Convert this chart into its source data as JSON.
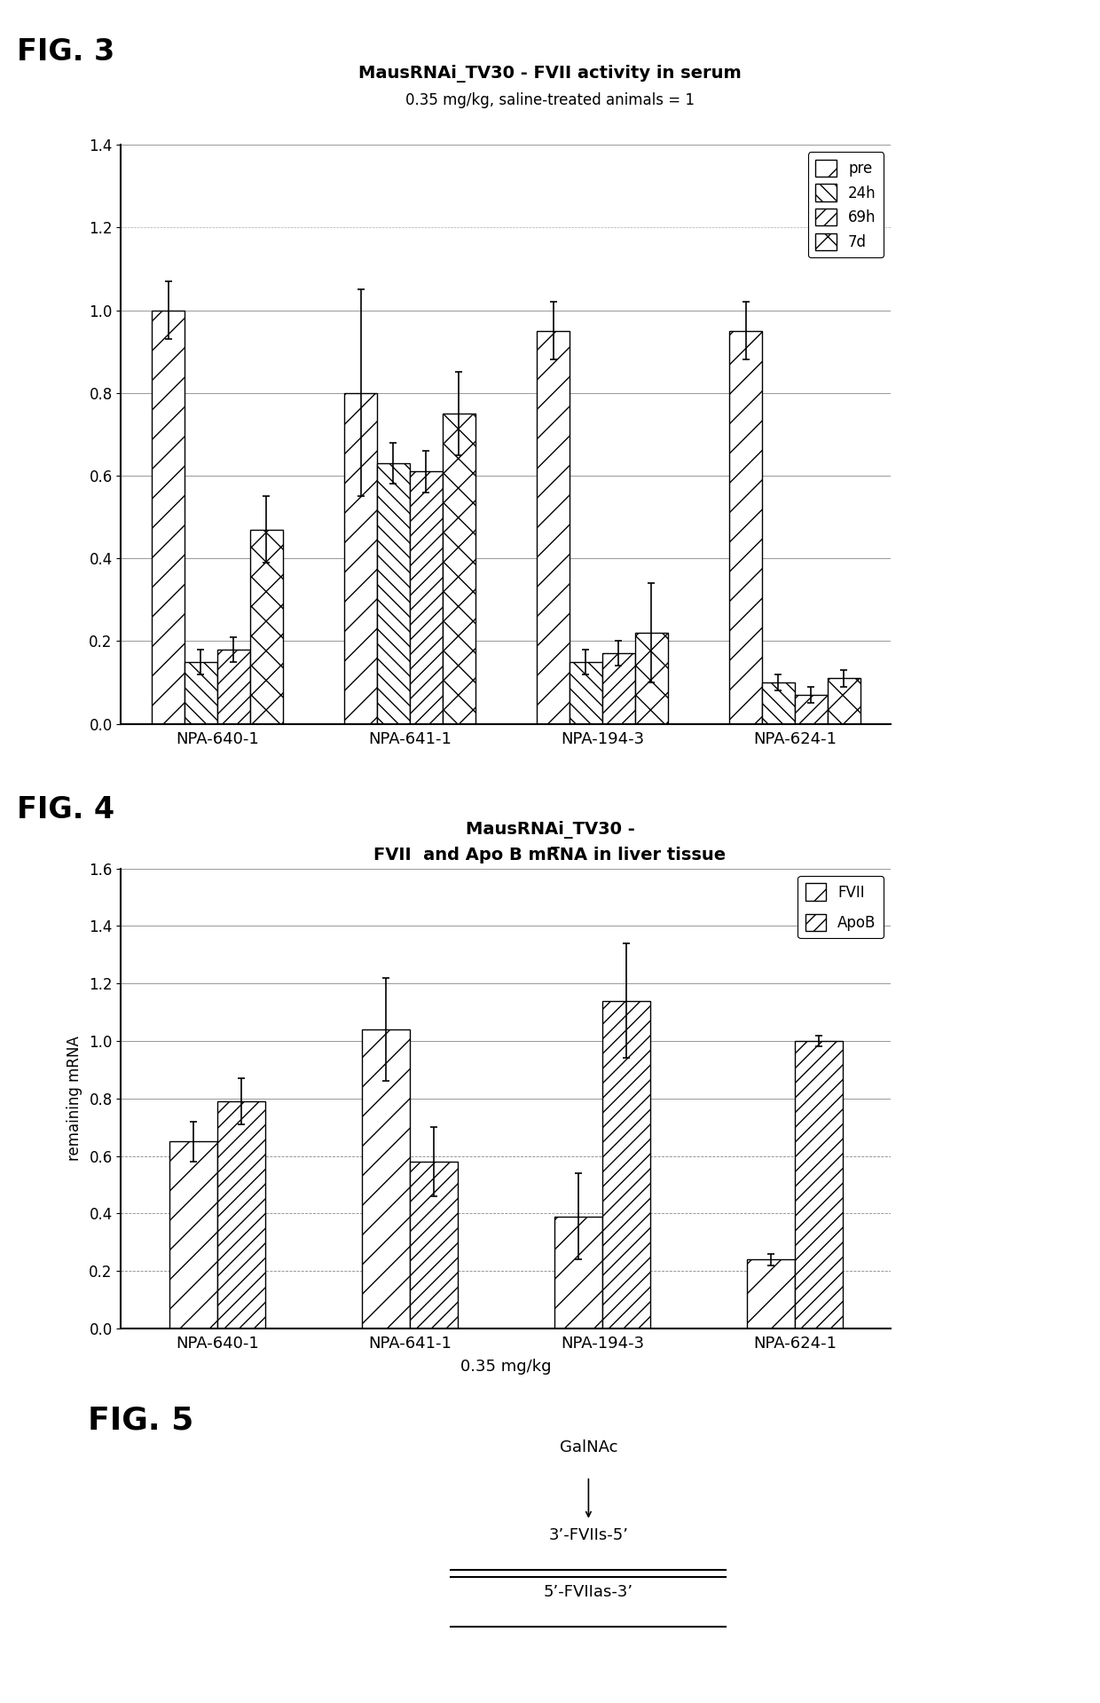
{
  "fig3_title_main": "MausRNAi_TV30 - FVII activity in serum",
  "fig3_title_sub": "0.35 mg/kg, saline-treated animals = 1",
  "fig3_categories": [
    "NPA-640-1",
    "NPA-641-1",
    "NPA-194-3",
    "NPA-624-1"
  ],
  "fig3_series_labels": [
    "pre",
    "24h",
    "69h",
    "7d"
  ],
  "fig3_values": [
    [
      1.0,
      0.8,
      0.95,
      0.95
    ],
    [
      0.15,
      0.63,
      0.15,
      0.1
    ],
    [
      0.18,
      0.61,
      0.17,
      0.07
    ],
    [
      0.47,
      0.75,
      0.22,
      0.11
    ]
  ],
  "fig3_errors": [
    [
      0.07,
      0.25,
      0.07,
      0.07
    ],
    [
      0.03,
      0.05,
      0.03,
      0.02
    ],
    [
      0.03,
      0.05,
      0.03,
      0.02
    ],
    [
      0.08,
      0.1,
      0.12,
      0.02
    ]
  ],
  "fig3_ylim": [
    0,
    1.4
  ],
  "fig3_yticks": [
    0,
    0.2,
    0.4,
    0.6,
    0.8,
    1.0,
    1.2,
    1.4
  ],
  "fig3_hatches": [
    "/",
    "\\\\",
    "//",
    "x"
  ],
  "fig3_label": "FIG. 3",
  "fig4_title_line1": "MausRNAi_TV30 -",
  "fig4_title_line2": "FVII  and Apo B mR̅NA in liver tissue",
  "fig4_categories": [
    "NPA-640-1",
    "NPA-641-1",
    "NPA-194-3",
    "NPA-624-1"
  ],
  "fig4_series_labels": [
    "FVII",
    "ApoB"
  ],
  "fig4_values": [
    [
      0.65,
      1.04,
      0.39,
      0.24
    ],
    [
      0.79,
      0.58,
      1.14,
      1.0
    ]
  ],
  "fig4_errors": [
    [
      0.07,
      0.18,
      0.15,
      0.02
    ],
    [
      0.08,
      0.12,
      0.2,
      0.02
    ]
  ],
  "fig4_ylabel": "remaining mRNA",
  "fig4_xlabel": "0.35 mg/kg",
  "fig4_ylim": [
    0,
    1.6
  ],
  "fig4_yticks": [
    0,
    0.2,
    0.4,
    0.6,
    0.8,
    1.0,
    1.2,
    1.4,
    1.6
  ],
  "fig4_hatches": [
    "/",
    "//"
  ],
  "fig4_label": "FIG. 4",
  "fig5_label": "FIG. 5",
  "fig5_galnac": "GalNAc",
  "fig5_sense": "3’-FVIIs-5’",
  "fig5_antisense": "5’-FVIIas-3’",
  "background_color": "#ffffff"
}
